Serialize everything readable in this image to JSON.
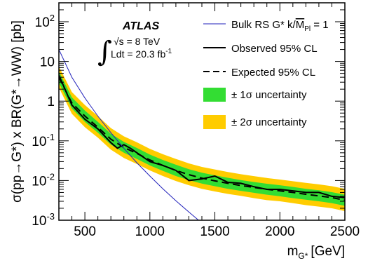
{
  "chart_data": {
    "type": "line",
    "title": "",
    "xlabel_main": "m",
    "xlabel_sub": "G*",
    "xlabel_unit": "[GeV]",
    "ylabel": "σ(pp→G*) x BR(G*→WW) [pb]",
    "xlim": [
      300,
      2500
    ],
    "ylim": [
      0.001,
      300
    ],
    "y_scale": "log",
    "x_ticks": [
      500,
      1000,
      1500,
      2000,
      2500
    ],
    "x_tick_labels": [
      "500",
      "1000",
      "1500",
      "2000",
      "2500"
    ],
    "y_ticks": [
      0.001,
      0.01,
      0.1,
      1,
      10,
      100
    ],
    "y_tick_labels": [
      {
        "base": "10",
        "exp": "-3"
      },
      {
        "base": "10",
        "exp": "-2"
      },
      {
        "base": "10",
        "exp": "-1"
      },
      {
        "base": "1",
        "exp": ""
      },
      {
        "base": "10",
        "exp": ""
      },
      {
        "base": "10",
        "exp": "2"
      }
    ],
    "annotations": {
      "experiment": "ATLAS",
      "energy": "√s = 8 TeV",
      "lumi_prefix": "Ldt = 20.3 fb",
      "lumi_exp": "-1"
    },
    "legend": {
      "placement": "top-right",
      "theory_prefix": "Bulk RS G* k/",
      "theory_M": "M",
      "theory_sub": "Pl",
      "theory_suffix": " = 1",
      "observed": "Observed 95% CL",
      "expected": "Expected 95% CL",
      "band1": "± 1σ uncertainty",
      "band2": "± 2σ uncertainty"
    },
    "colors": {
      "theory": "#2222bb",
      "observed": "#000000",
      "expected": "#000000",
      "band1": "#33dd33",
      "band2": "#ffcc00"
    },
    "series": [
      {
        "name": "Bulk RS G* k/MPl = 1",
        "x": [
          300,
          400,
          500,
          600,
          700,
          800,
          900,
          1000,
          1100,
          1200,
          1300,
          1400
        ],
        "values": [
          20,
          4.0,
          1.2,
          0.42,
          0.16,
          0.065,
          0.028,
          0.013,
          0.0062,
          0.0031,
          0.0016,
          0.00085
        ]
      },
      {
        "name": "Observed 95% CL",
        "x": [
          300,
          400,
          500,
          600,
          700,
          750,
          800,
          850,
          900,
          1000,
          1100,
          1200,
          1300,
          1400,
          1500,
          1600,
          1700,
          1800,
          1900,
          2000,
          2100,
          2200,
          2300,
          2400,
          2500
        ],
        "values": [
          4.5,
          0.8,
          0.35,
          0.2,
          0.09,
          0.065,
          0.08,
          0.065,
          0.05,
          0.03,
          0.024,
          0.018,
          0.01,
          0.011,
          0.013,
          0.009,
          0.0085,
          0.007,
          0.006,
          0.006,
          0.0055,
          0.005,
          0.005,
          0.004,
          0.0037
        ]
      },
      {
        "name": "Expected 95% CL",
        "x": [
          300,
          400,
          500,
          600,
          700,
          800,
          900,
          1000,
          1100,
          1200,
          1300,
          1400,
          1500,
          1600,
          1700,
          1800,
          1900,
          2000,
          2100,
          2200,
          2300,
          2400,
          2500
        ],
        "values": [
          4.0,
          0.9,
          0.42,
          0.22,
          0.11,
          0.068,
          0.048,
          0.033,
          0.024,
          0.018,
          0.014,
          0.0115,
          0.0098,
          0.0085,
          0.0075,
          0.0067,
          0.006,
          0.0055,
          0.005,
          0.0045,
          0.0041,
          0.0037,
          0.0032
        ]
      },
      {
        "name": "± 1σ uncertainty",
        "x": [
          300,
          400,
          500,
          600,
          700,
          800,
          900,
          1000,
          1100,
          1200,
          1300,
          1400,
          1500,
          1600,
          1700,
          1800,
          1900,
          2000,
          2100,
          2200,
          2300,
          2400,
          2500
        ],
        "low": [
          2.9,
          0.65,
          0.3,
          0.16,
          0.08,
          0.05,
          0.035,
          0.024,
          0.0175,
          0.013,
          0.0102,
          0.0084,
          0.0072,
          0.0062,
          0.0055,
          0.0049,
          0.0044,
          0.004,
          0.0036,
          0.0033,
          0.003,
          0.0027,
          0.0023
        ],
        "high": [
          5.6,
          1.25,
          0.58,
          0.3,
          0.15,
          0.094,
          0.066,
          0.045,
          0.033,
          0.025,
          0.0193,
          0.0158,
          0.0135,
          0.0117,
          0.0103,
          0.0092,
          0.0083,
          0.0076,
          0.0069,
          0.0062,
          0.0057,
          0.0051,
          0.0044
        ]
      },
      {
        "name": "± 2σ uncertainty",
        "x": [
          300,
          400,
          500,
          600,
          700,
          800,
          900,
          1000,
          1100,
          1200,
          1300,
          1400,
          1500,
          1600,
          1700,
          1800,
          1900,
          2000,
          2100,
          2200,
          2300,
          2400,
          2500
        ],
        "low": [
          2.2,
          0.48,
          0.22,
          0.12,
          0.06,
          0.037,
          0.026,
          0.018,
          0.013,
          0.0097,
          0.0076,
          0.0062,
          0.0053,
          0.0046,
          0.0041,
          0.0036,
          0.0032,
          0.003,
          0.0027,
          0.0024,
          0.0022,
          0.002,
          0.0017
        ],
        "high": [
          7.5,
          1.7,
          0.8,
          0.42,
          0.21,
          0.13,
          0.092,
          0.063,
          0.046,
          0.035,
          0.027,
          0.022,
          0.019,
          0.0164,
          0.0144,
          0.0129,
          0.0116,
          0.0106,
          0.0096,
          0.0087,
          0.008,
          0.0072,
          0.0062
        ]
      }
    ]
  }
}
